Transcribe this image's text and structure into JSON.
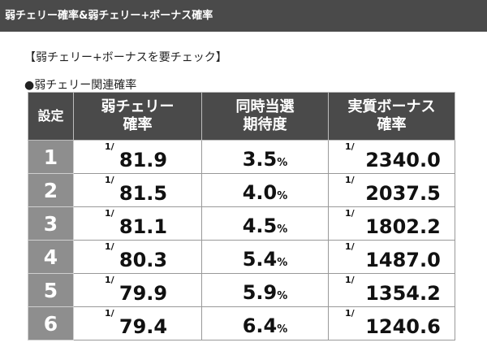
{
  "header": {
    "title": "弱チェリー確率&弱チェリー+ボーナス確率"
  },
  "intro": {
    "text": "【弱チェリー+ボーナスを要チェック】"
  },
  "table_caption": "●弱チェリー関連確率",
  "table": {
    "headers": {
      "setting": "設定",
      "weak_cherry_line1": "弱チェリー",
      "weak_cherry_line2": "確率",
      "expectation_line1": "同時当選",
      "expectation_line2": "期待度",
      "bonus_line1": "実質ボーナス",
      "bonus_line2": "確率"
    },
    "fraction_prefix": "1/",
    "percent_sign": "%",
    "rows": [
      {
        "setting": "1",
        "weak_cherry": "81.9",
        "expectation": "3.5",
        "bonus": "2340.0"
      },
      {
        "setting": "2",
        "weak_cherry": "81.5",
        "expectation": "4.0",
        "bonus": "2037.5"
      },
      {
        "setting": "3",
        "weak_cherry": "81.1",
        "expectation": "4.5",
        "bonus": "1802.2"
      },
      {
        "setting": "4",
        "weak_cherry": "80.3",
        "expectation": "5.4",
        "bonus": "1487.0"
      },
      {
        "setting": "5",
        "weak_cherry": "79.9",
        "expectation": "5.9",
        "bonus": "1354.2"
      },
      {
        "setting": "6",
        "weak_cherry": "79.4",
        "expectation": "6.4",
        "bonus": "1240.6"
      }
    ]
  },
  "colors": {
    "header_bg": "#4a4a4a",
    "setting_cell_bg": "#8e8e8e"
  }
}
